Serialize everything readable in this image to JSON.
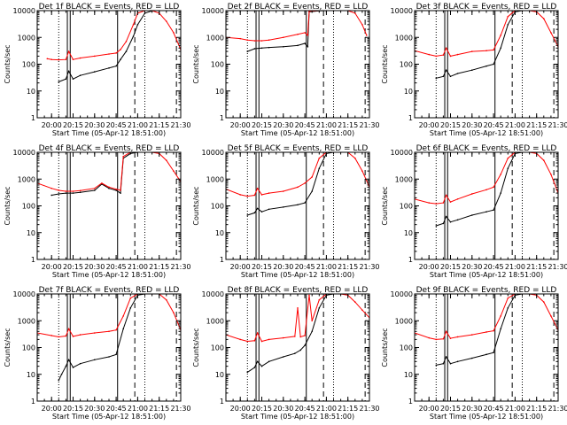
{
  "colors": {
    "events": "#000000",
    "lld": "#ff0000",
    "axis": "#000000"
  },
  "chart_data": [
    {
      "type": "line",
      "title": "Det 1f BLACK = Events, RED = LLD",
      "xlabel": "Start Time (05-Apr-12 18:51:00)",
      "ylabel": "Counts/sec",
      "y_scale": "log",
      "ylim": [
        1,
        10000
      ],
      "y_ticks": [
        "1",
        "10",
        "100",
        "1000",
        "10000"
      ],
      "xlim": [
        "19:50",
        "21:30"
      ],
      "x_ticks": [
        "20:00",
        "20:15",
        "20:30",
        "20:45",
        "21:00",
        "21:15",
        "21:30"
      ],
      "series": [
        {
          "name": "BLACK = Events",
          "x": [
            "20:05",
            "20:10",
            "20:12",
            "20:15",
            "20:20",
            "20:30",
            "20:40",
            "20:45",
            "20:48",
            "20:52",
            "20:57",
            "21:00",
            "21:05",
            "21:10",
            "21:12"
          ],
          "values": [
            22,
            28,
            55,
            28,
            38,
            52,
            72,
            85,
            150,
            300,
            1100,
            3000,
            8000,
            9800,
            10000
          ]
        },
        {
          "name": "RED = LLD",
          "x": [
            "19:57",
            "20:00",
            "20:05",
            "20:10",
            "20:12",
            "20:15",
            "20:20",
            "20:30",
            "20:40",
            "20:45",
            "20:48",
            "20:52",
            "20:57",
            "21:00",
            "21:05",
            "21:10",
            "21:15",
            "21:20",
            "21:25",
            "21:30"
          ],
          "values": [
            160,
            150,
            145,
            150,
            300,
            150,
            170,
            200,
            240,
            260,
            350,
            700,
            3000,
            8000,
            10000,
            10000,
            8000,
            4000,
            1500,
            350
          ]
        }
      ]
    },
    {
      "type": "line",
      "title": "Det 2f BLACK = Events, RED = LLD",
      "xlabel": "Start Time (05-Apr-12 18:51:00)",
      "ylabel": "Counts/sec",
      "y_scale": "log",
      "ylim": [
        1,
        10000
      ],
      "y_ticks": [
        "1",
        "10",
        "100",
        "1000",
        "10000"
      ],
      "xlim": [
        "19:50",
        "21:30"
      ],
      "x_ticks": [
        "20:00",
        "20:15",
        "20:30",
        "20:45",
        "21:00",
        "21:15",
        "21:30"
      ],
      "series": [
        {
          "name": "BLACK = Events",
          "x": [
            "20:05",
            "20:10",
            "20:15",
            "20:20",
            "20:30",
            "20:40",
            "20:45",
            "20:47",
            "20:48",
            "20:55",
            "21:00",
            "21:05",
            "21:10",
            "21:15"
          ],
          "values": [
            300,
            380,
            400,
            420,
            450,
            500,
            600,
            450,
            9000,
            9800,
            10000,
            10000,
            10000,
            10000
          ]
        },
        {
          "name": "RED = LLD",
          "x": [
            "19:50",
            "20:00",
            "20:05",
            "20:10",
            "20:15",
            "20:20",
            "20:30",
            "20:40",
            "20:45",
            "20:47",
            "20:48",
            "20:55",
            "21:00",
            "21:05",
            "21:10",
            "21:15",
            "21:20",
            "21:25",
            "21:28"
          ],
          "values": [
            1000,
            900,
            800,
            750,
            750,
            800,
            1000,
            1300,
            1500,
            1200,
            9500,
            10000,
            10000,
            10000,
            10000,
            10000,
            8000,
            3000,
            1200
          ]
        }
      ]
    },
    {
      "type": "line",
      "title": "Det 3f BLACK = Events, RED = LLD",
      "xlabel": "Start Time (05-Apr-12 18:51:00)",
      "ylabel": "Counts/sec",
      "y_scale": "log",
      "ylim": [
        1,
        10000
      ],
      "y_ticks": [
        "1",
        "10",
        "100",
        "1000",
        "10000"
      ],
      "xlim": [
        "19:50",
        "21:30"
      ],
      "x_ticks": [
        "20:00",
        "20:15",
        "20:30",
        "20:45",
        "21:00",
        "21:15",
        "21:30"
      ],
      "series": [
        {
          "name": "BLACK = Events",
          "x": [
            "20:05",
            "20:10",
            "20:12",
            "20:15",
            "20:20",
            "20:30",
            "20:40",
            "20:45",
            "20:50",
            "20:55",
            "21:00",
            "21:05",
            "21:10"
          ],
          "values": [
            30,
            35,
            60,
            35,
            45,
            60,
            85,
            100,
            400,
            3000,
            9000,
            10000,
            10000
          ]
        },
        {
          "name": "RED = LLD",
          "x": [
            "19:50",
            "20:00",
            "20:05",
            "20:10",
            "20:12",
            "20:15",
            "20:20",
            "20:30",
            "20:40",
            "20:45",
            "20:50",
            "20:55",
            "21:00",
            "21:05",
            "21:10",
            "21:15",
            "21:20",
            "21:25",
            "21:30"
          ],
          "values": [
            320,
            230,
            200,
            220,
            400,
            200,
            230,
            300,
            320,
            340,
            1200,
            6000,
            10000,
            10000,
            10000,
            9000,
            5000,
            1500,
            450
          ]
        }
      ]
    },
    {
      "type": "line",
      "title": "Det 4f BLACK = Events, RED = LLD",
      "xlabel": "Start Time (05-Apr-12 18:51:00)",
      "ylabel": "Counts/sec",
      "y_scale": "log",
      "ylim": [
        1,
        10000
      ],
      "y_ticks": [
        "1",
        "10",
        "100",
        "1000",
        "10000"
      ],
      "xlim": [
        "19:50",
        "21:30"
      ],
      "x_ticks": [
        "20:00",
        "20:15",
        "20:30",
        "20:45",
        "21:00",
        "21:15",
        "21:30"
      ],
      "series": [
        {
          "name": "BLACK = Events",
          "x": [
            "20:00",
            "20:05",
            "20:10",
            "20:15",
            "20:20",
            "20:30",
            "20:35",
            "20:40",
            "20:45",
            "20:48",
            "20:50",
            "20:55",
            "21:00",
            "21:05",
            "21:10"
          ],
          "values": [
            250,
            280,
            300,
            300,
            320,
            380,
            650,
            450,
            380,
            300,
            6000,
            9000,
            10000,
            10000,
            10000
          ]
        },
        {
          "name": "RED = LLD",
          "x": [
            "19:50",
            "20:00",
            "20:05",
            "20:10",
            "20:15",
            "20:20",
            "20:30",
            "20:35",
            "20:40",
            "20:45",
            "20:48",
            "20:50",
            "20:55",
            "21:00",
            "21:05",
            "21:10",
            "21:15",
            "21:20",
            "21:25",
            "21:30"
          ],
          "values": [
            700,
            450,
            380,
            350,
            350,
            370,
            450,
            700,
            500,
            420,
            380,
            7000,
            10000,
            10000,
            10000,
            10000,
            9000,
            5000,
            2000,
            800
          ]
        }
      ]
    },
    {
      "type": "line",
      "title": "Det 5f BLACK = Events, RED = LLD",
      "xlabel": "Start Time (05-Apr-12 18:51:00)",
      "ylabel": "Counts/sec",
      "y_scale": "log",
      "ylim": [
        1,
        10000
      ],
      "y_ticks": [
        "1",
        "10",
        "100",
        "1000",
        "10000"
      ],
      "xlim": [
        "19:50",
        "21:30"
      ],
      "x_ticks": [
        "20:00",
        "20:15",
        "20:30",
        "20:45",
        "21:00",
        "21:15",
        "21:30"
      ],
      "series": [
        {
          "name": "BLACK = Events",
          "x": [
            "20:05",
            "20:10",
            "20:12",
            "20:15",
            "20:20",
            "20:30",
            "20:40",
            "20:45",
            "20:50",
            "20:55",
            "21:00",
            "21:05",
            "21:10"
          ],
          "values": [
            45,
            55,
            80,
            60,
            75,
            90,
            110,
            130,
            350,
            2500,
            9000,
            10000,
            10000
          ]
        },
        {
          "name": "RED = LLD",
          "x": [
            "19:50",
            "20:00",
            "20:05",
            "20:10",
            "20:12",
            "20:15",
            "20:20",
            "20:30",
            "20:40",
            "20:45",
            "20:50",
            "20:55",
            "21:00",
            "21:05",
            "21:10",
            "21:15",
            "21:20",
            "21:25",
            "21:30"
          ],
          "values": [
            420,
            260,
            230,
            250,
            450,
            260,
            300,
            350,
            500,
            700,
            1200,
            6000,
            10000,
            10000,
            10000,
            10000,
            6000,
            2000,
            500
          ]
        }
      ]
    },
    {
      "type": "line",
      "title": "Det 6f BLACK = Events, RED = LLD",
      "xlabel": "Start Time (05-Apr-12 18:51:00)",
      "ylabel": "Counts/sec",
      "y_scale": "log",
      "ylim": [
        1,
        10000
      ],
      "y_ticks": [
        "1",
        "10",
        "100",
        "1000",
        "10000"
      ],
      "xlim": [
        "19:50",
        "21:30"
      ],
      "x_ticks": [
        "20:00",
        "20:15",
        "20:30",
        "20:45",
        "21:00",
        "21:15",
        "21:30"
      ],
      "series": [
        {
          "name": "BLACK = Events",
          "x": [
            "20:05",
            "20:10",
            "20:12",
            "20:15",
            "20:20",
            "20:30",
            "20:40",
            "20:45",
            "20:50",
            "20:55",
            "21:00",
            "21:05",
            "21:10"
          ],
          "values": [
            18,
            22,
            40,
            25,
            30,
            45,
            60,
            70,
            300,
            2500,
            9000,
            10000,
            10000
          ]
        },
        {
          "name": "RED = LLD",
          "x": [
            "19:50",
            "20:00",
            "20:05",
            "20:10",
            "20:12",
            "20:15",
            "20:20",
            "20:30",
            "20:40",
            "20:45",
            "20:50",
            "20:55",
            "21:00",
            "21:05",
            "21:10",
            "21:15",
            "21:20",
            "21:25",
            "21:30"
          ],
          "values": [
            180,
            130,
            120,
            130,
            250,
            140,
            180,
            280,
            400,
            500,
            1500,
            6000,
            10000,
            10000,
            10000,
            9000,
            5000,
            1500,
            300
          ]
        }
      ]
    },
    {
      "type": "line",
      "title": "Det 7f BLACK = Events, RED = LLD",
      "xlabel": "Start Time (05-Apr-12 18:51:00)",
      "ylabel": "Counts/sec",
      "y_scale": "log",
      "ylim": [
        1,
        10000
      ],
      "y_ticks": [
        "1",
        "10",
        "100",
        "1000",
        "10000"
      ],
      "xlim": [
        "19:50",
        "21:30"
      ],
      "x_ticks": [
        "20:00",
        "20:15",
        "20:30",
        "20:45",
        "21:00",
        "21:15",
        "21:30"
      ],
      "series": [
        {
          "name": "BLACK = Events",
          "x": [
            "20:05",
            "20:07",
            "20:10",
            "20:12",
            "20:15",
            "20:20",
            "20:30",
            "20:40",
            "20:45",
            "20:50",
            "20:55",
            "21:00",
            "21:05"
          ],
          "values": [
            6,
            10,
            20,
            35,
            18,
            25,
            35,
            45,
            55,
            500,
            3000,
            9000,
            10000
          ]
        },
        {
          "name": "RED = LLD",
          "x": [
            "19:50",
            "20:00",
            "20:05",
            "20:10",
            "20:12",
            "20:15",
            "20:20",
            "20:30",
            "20:40",
            "20:45",
            "20:50",
            "20:55",
            "21:00",
            "21:05",
            "21:10",
            "21:15",
            "21:20",
            "21:25",
            "21:30"
          ],
          "values": [
            350,
            280,
            250,
            270,
            500,
            260,
            300,
            350,
            400,
            450,
            1500,
            7000,
            10000,
            10000,
            10000,
            10000,
            6000,
            2000,
            450
          ]
        }
      ]
    },
    {
      "type": "line",
      "title": "Det 8f BLACK = Events, RED = LLD",
      "xlabel": "Start Time (05-Apr-12 18:51:00)",
      "ylabel": "Counts/sec",
      "y_scale": "log",
      "ylim": [
        1,
        10000
      ],
      "y_ticks": [
        "1",
        "10",
        "100",
        "1000",
        "10000"
      ],
      "xlim": [
        "19:50",
        "21:30"
      ],
      "x_ticks": [
        "20:00",
        "20:15",
        "20:30",
        "20:45",
        "21:00",
        "21:15",
        "21:30"
      ],
      "series": [
        {
          "name": "BLACK = Events",
          "x": [
            "20:05",
            "20:10",
            "20:12",
            "20:15",
            "20:20",
            "20:30",
            "20:38",
            "20:42",
            "20:45",
            "20:50",
            "20:55",
            "21:00",
            "21:05",
            "21:10"
          ],
          "values": [
            12,
            18,
            30,
            20,
            30,
            45,
            60,
            80,
            120,
            400,
            3000,
            9000,
            10000,
            10000
          ]
        },
        {
          "name": "RED = LLD",
          "x": [
            "19:50",
            "20:00",
            "20:05",
            "20:10",
            "20:12",
            "20:15",
            "20:20",
            "20:30",
            "20:38",
            "20:40",
            "20:42",
            "20:45",
            "20:48",
            "20:50",
            "20:55",
            "21:00",
            "21:05",
            "21:10",
            "21:15",
            "21:20",
            "21:25",
            "21:30"
          ],
          "values": [
            300,
            200,
            170,
            180,
            350,
            170,
            200,
            230,
            260,
            3000,
            250,
            280,
            9000,
            1000,
            6000,
            10000,
            10000,
            10000,
            9000,
            5000,
            2500,
            1300
          ]
        }
      ]
    },
    {
      "type": "line",
      "title": "Det 9f BLACK = Events, RED = LLD",
      "xlabel": "Start Time (05-Apr-12 18:51:00)",
      "ylabel": "Counts/sec",
      "y_scale": "log",
      "ylim": [
        1,
        10000
      ],
      "y_ticks": [
        "1",
        "10",
        "100",
        "1000",
        "10000"
      ],
      "xlim": [
        "19:50",
        "21:30"
      ],
      "x_ticks": [
        "20:00",
        "20:15",
        "20:30",
        "20:45",
        "21:00",
        "21:15",
        "21:30"
      ],
      "series": [
        {
          "name": "BLACK = Events",
          "x": [
            "20:05",
            "20:10",
            "20:12",
            "20:15",
            "20:20",
            "20:30",
            "20:40",
            "20:45",
            "20:50",
            "20:55",
            "21:00",
            "21:05",
            "21:10"
          ],
          "values": [
            22,
            25,
            45,
            25,
            30,
            40,
            55,
            65,
            500,
            3000,
            9000,
            10000,
            10000
          ]
        },
        {
          "name": "RED = LLD",
          "x": [
            "19:50",
            "20:00",
            "20:05",
            "20:10",
            "20:12",
            "20:15",
            "20:20",
            "20:30",
            "20:40",
            "20:45",
            "20:50",
            "20:55",
            "21:00",
            "21:05",
            "21:10",
            "21:15",
            "21:20",
            "21:25",
            "21:30"
          ],
          "values": [
            350,
            230,
            200,
            210,
            400,
            220,
            250,
            300,
            380,
            420,
            1500,
            7000,
            10000,
            10000,
            10000,
            9000,
            5000,
            1500,
            450
          ]
        }
      ]
    }
  ]
}
